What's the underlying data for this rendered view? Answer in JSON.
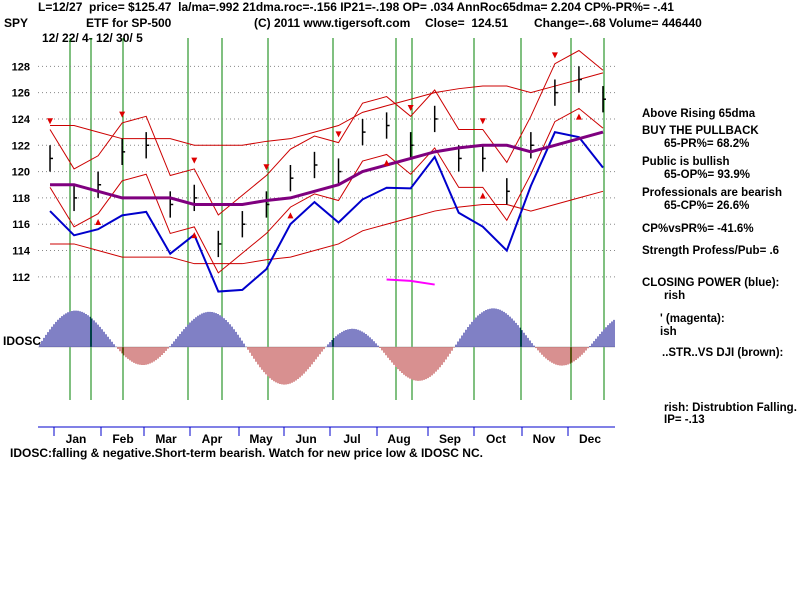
{
  "header": {
    "line1": "L=12/27  price= $125.47  la/ma=.992 21dma.roc=-.156 IP21=-.198 OP= .034 AnnRoc65dma= 2.204 CP%-PR%= -.41",
    "symbol": "SPY",
    "etf": "ETF for SP-500",
    "copyright": "(C) 2011 www.tigersoft.com",
    "close": "Close=  124.51",
    "change": "Change=-.68 Volume= 446440",
    "dates": "12/ 22/ 4- 12/ 30/ 5"
  },
  "indicator_label": "IDOSC",
  "footer": "IDOSC:falling & negative.Short-term bearish. Watch for new price low & IDOSC NC.",
  "side": {
    "above_ma": "Above Rising 65dma",
    "buy": "BUY THE PULLBACK",
    "pr": "65-PR%= 68.2%",
    "public": "Public is bullish",
    "op": "65-OP%= 93.9%",
    "pros": "Professionals are bearish",
    "cp": "65-CP%= 26.6%",
    "cpvspr": "CP%vsPR%= -41.6%",
    "strength": "Strength Profess/Pub= .6",
    "closing_power": "CLOSING POWER (blue):",
    "cp_state": "rish",
    "magenta": "' (magenta):",
    "magenta_state": "ish",
    "brown": "..STR..VS DJI (brown):",
    "distribution": "rish: Distrubtion Falling.",
    "ip": "IP= -.13"
  },
  "colors": {
    "price_bars": "#000000",
    "ma_bands": "#cc0000",
    "ma65": "#7f007f",
    "closing_power": "#0000cc",
    "magenta": "#ff00ff",
    "relative_strength": "#8b4513",
    "grid_lines": "#008000",
    "arrows": "#dd0000",
    "idosc_positive": "#00008b",
    "idosc_negative": "#b22222"
  },
  "chart_data": {
    "type": "line",
    "title": "SPY ETF for SP-500",
    "x_months": [
      "Jan",
      "Feb",
      "Mar",
      "Apr",
      "May",
      "Jun",
      "Jul",
      "Aug",
      "Sep",
      "Oct",
      "Nov",
      "Dec"
    ],
    "y_ticks": [
      112,
      114,
      116,
      118,
      120,
      122,
      124,
      126,
      128
    ],
    "ylim": [
      111,
      130
    ],
    "price": {
      "months": [
        "Jan",
        "Jan",
        "Feb",
        "Feb",
        "Mar",
        "Mar",
        "Apr",
        "Apr",
        "May",
        "May",
        "Jun",
        "Jun",
        "Jul",
        "Jul",
        "Aug",
        "Aug",
        "Sep",
        "Sep",
        "Oct",
        "Oct",
        "Nov",
        "Nov",
        "Dec",
        "Dec"
      ],
      "values": [
        121,
        118,
        119,
        121.5,
        122,
        117.5,
        118,
        114.5,
        116,
        117.5,
        119.5,
        120.5,
        120,
        123,
        123.5,
        122,
        124,
        121,
        121,
        118.5,
        122,
        126,
        127,
        125.5
      ]
    },
    "ma65": [
      119,
      119,
      118.5,
      118,
      118,
      118,
      117.5,
      117.5,
      117.5,
      117.8,
      118,
      118.5,
      119,
      120,
      120.5,
      121,
      121.5,
      121.8,
      122,
      122,
      121.5,
      122,
      122.5,
      123
    ],
    "closing_power_visible": true,
    "idosc_visible": true
  }
}
